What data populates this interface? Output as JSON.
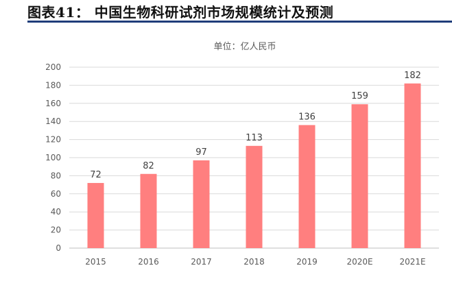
{
  "header": {
    "title": "图表41： 中国生物科研试剂市场规模统计及预测"
  },
  "chart_data": {
    "type": "bar",
    "subtitle": "单位：亿人民币",
    "categories": [
      "2015",
      "2016",
      "2017",
      "2018",
      "2019",
      "2020E",
      "2021E"
    ],
    "values": [
      72,
      82,
      97,
      113,
      136,
      159,
      182
    ],
    "ylim": [
      0,
      200
    ],
    "yticks": [
      0,
      20,
      40,
      60,
      80,
      100,
      120,
      140,
      160,
      180,
      200
    ],
    "grid": true,
    "legend": "none",
    "bar_color": "#ff7f7f",
    "grid_color": "#d9d9d9",
    "text_color": "#595959"
  }
}
